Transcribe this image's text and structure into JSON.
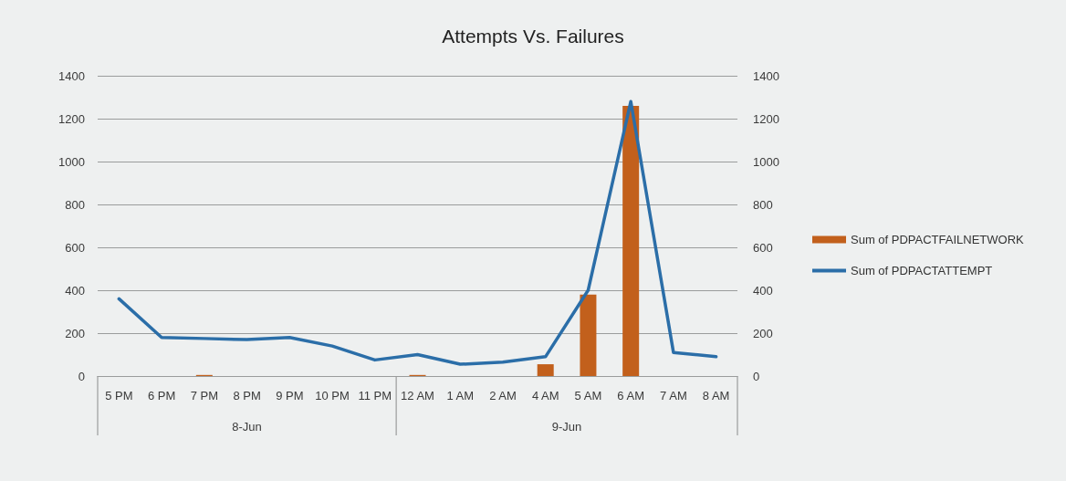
{
  "chart_data": {
    "type": "bar",
    "title": "Attempts Vs. Failures",
    "categories": [
      "5 PM",
      "6 PM",
      "7 PM",
      "8 PM",
      "9 PM",
      "10 PM",
      "11 PM",
      "12 AM",
      "1 AM",
      "2 AM",
      "4 AM",
      "5 AM",
      "6 AM",
      "7 AM",
      "8 AM"
    ],
    "series": [
      {
        "name": "Sum of PDPACTFAILNETWORK",
        "color": "#c2601c",
        "values": [
          null,
          null,
          5,
          null,
          null,
          null,
          null,
          5,
          null,
          null,
          55,
          380,
          1260,
          null,
          null
        ]
      },
      {
        "name": "Sum of PDPACTATTEMPT",
        "type": "line",
        "axis": "y2",
        "color": "#2b6ea8",
        "values": [
          360,
          180,
          175,
          170,
          180,
          140,
          75,
          100,
          55,
          65,
          90,
          400,
          1280,
          110,
          90
        ]
      }
    ],
    "ylim": [
      0,
      1400
    ],
    "yticks": [
      0,
      200,
      400,
      600,
      800,
      1000,
      1200,
      1400
    ],
    "y2lim": [
      0,
      1400
    ],
    "y2ticks": [
      0,
      200,
      400,
      600,
      800,
      1000,
      1200,
      1400
    ],
    "grid": "y",
    "legend": "right",
    "marker": "none",
    "annotations": [
      "8-Jun",
      "9-Jun"
    ]
  }
}
